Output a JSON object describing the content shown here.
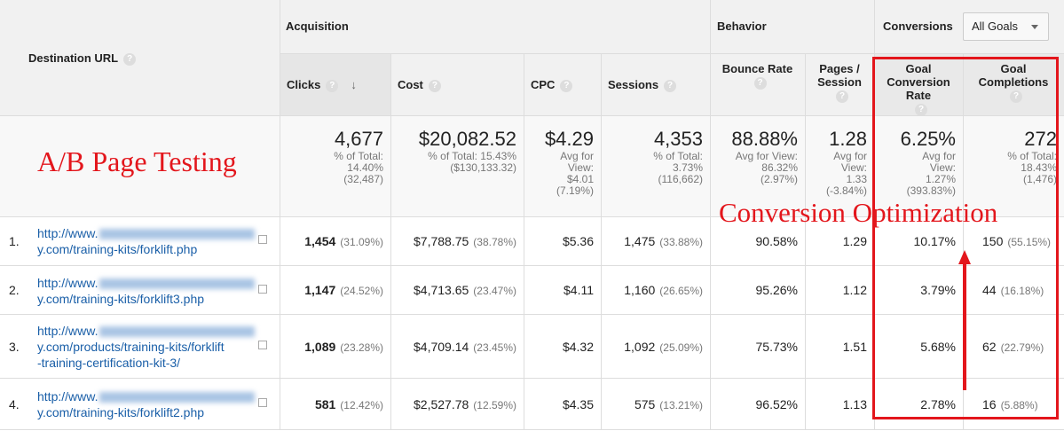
{
  "overlay": {
    "title": "A/B Page Testing",
    "annotation": "Conversion Optimization"
  },
  "header": {
    "dimension": "Destination URL",
    "groups": [
      "Acquisition",
      "Behavior",
      "Conversions"
    ],
    "goal_selector": "All Goals",
    "columns": [
      "Clicks",
      "Cost",
      "CPC",
      "Sessions",
      "Bounce Rate",
      "Pages / Session",
      "Goal Conversion Rate",
      "Goal Completions"
    ]
  },
  "totals": [
    {
      "value": "4,677",
      "detail": [
        "% of Total:",
        "14.40%",
        "(32,487)"
      ]
    },
    {
      "value": "$20,082.52",
      "detail": [
        "% of Total: 15.43%",
        "($130,133.32)"
      ]
    },
    {
      "value": "$4.29",
      "detail": [
        "Avg for",
        "View:",
        "$4.01",
        "(7.19%)"
      ]
    },
    {
      "value": "4,353",
      "detail": [
        "% of Total:",
        "3.73%",
        "(116,662)"
      ]
    },
    {
      "value": "88.88%",
      "detail": [
        "Avg for View:",
        "86.32%",
        "(2.97%)"
      ]
    },
    {
      "value": "1.28",
      "detail": [
        "Avg for",
        "View:",
        "1.33",
        "(-3.84%)"
      ]
    },
    {
      "value": "6.25%",
      "detail": [
        "Avg for",
        "View:",
        "1.27%",
        "(393.83%)"
      ]
    },
    {
      "value": "272",
      "detail": [
        "% of Total:",
        "18.43%",
        "(1,476)"
      ]
    }
  ],
  "rows": [
    {
      "index": "1.",
      "url_start": "http://www.",
      "url_rest": [
        "y.com/training-kits/forklift.php"
      ],
      "cells": [
        {
          "value": "1,454",
          "share": "(31.09%)"
        },
        {
          "value": "$7,788.75",
          "share": "(38.78%)"
        },
        {
          "value": "$5.36"
        },
        {
          "value": "1,475",
          "share": "(33.88%)"
        },
        {
          "value": "90.58%"
        },
        {
          "value": "1.29"
        },
        {
          "value": "10.17%"
        },
        {
          "value": "150",
          "share": "(55.15%)"
        }
      ]
    },
    {
      "index": "2.",
      "url_start": "http://www.",
      "url_rest": [
        "y.com/training-kits/forklift3.php"
      ],
      "cells": [
        {
          "value": "1,147",
          "share": "(24.52%)"
        },
        {
          "value": "$4,713.65",
          "share": "(23.47%)"
        },
        {
          "value": "$4.11"
        },
        {
          "value": "1,160",
          "share": "(26.65%)"
        },
        {
          "value": "95.26%"
        },
        {
          "value": "1.12"
        },
        {
          "value": "3.79%"
        },
        {
          "value": "44",
          "share": "(16.18%)"
        }
      ]
    },
    {
      "index": "3.",
      "url_start": "http://www.",
      "url_rest": [
        "y.com/products/training-kits/forklift",
        "-training-certification-kit-3/"
      ],
      "cells": [
        {
          "value": "1,089",
          "share": "(23.28%)"
        },
        {
          "value": "$4,709.14",
          "share": "(23.45%)"
        },
        {
          "value": "$4.32"
        },
        {
          "value": "1,092",
          "share": "(25.09%)"
        },
        {
          "value": "75.73%"
        },
        {
          "value": "1.51"
        },
        {
          "value": "5.68%"
        },
        {
          "value": "62",
          "share": "(22.79%)"
        }
      ]
    },
    {
      "index": "4.",
      "url_start": "http://www.",
      "url_rest": [
        "y.com/training-kits/forklift2.php"
      ],
      "cells": [
        {
          "value": "581",
          "share": "(12.42%)"
        },
        {
          "value": "$2,527.78",
          "share": "(12.59%)"
        },
        {
          "value": "$4.35"
        },
        {
          "value": "575",
          "share": "(13.21%)"
        },
        {
          "value": "96.52%"
        },
        {
          "value": "1.13"
        },
        {
          "value": "2.78%"
        },
        {
          "value": "16",
          "share": "(5.88%)"
        }
      ]
    }
  ]
}
